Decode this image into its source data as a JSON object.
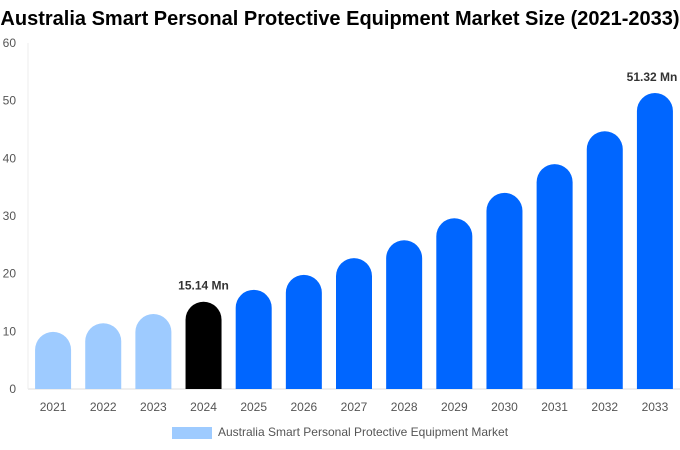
{
  "chart_data": {
    "type": "bar",
    "title": "Australia Smart Personal Protective Equipment Market Size (2021-2033)",
    "categories": [
      "2021",
      "2022",
      "2023",
      "2024",
      "2025",
      "2026",
      "2027",
      "2028",
      "2029",
      "2030",
      "2031",
      "2032",
      "2033"
    ],
    "series": [
      {
        "name": "Australia Smart Personal Protective Equipment Market",
        "values": [
          9.9,
          11.4,
          13.0,
          15.14,
          17.2,
          19.8,
          22.7,
          25.8,
          29.6,
          34.0,
          39.0,
          44.7,
          51.32
        ]
      }
    ],
    "data_labels": {
      "3": "15.14 Mn",
      "12": "51.32 Mn"
    },
    "ylim": [
      0,
      60
    ],
    "yticks": [
      0,
      10,
      20,
      30,
      40,
      50,
      60
    ],
    "grid": false,
    "legend_position": "bottom",
    "colors": {
      "historical": "#9ECBFF",
      "base_year": "#000000",
      "forecast": "#0066FF"
    },
    "bar_style": "rounded-top"
  }
}
